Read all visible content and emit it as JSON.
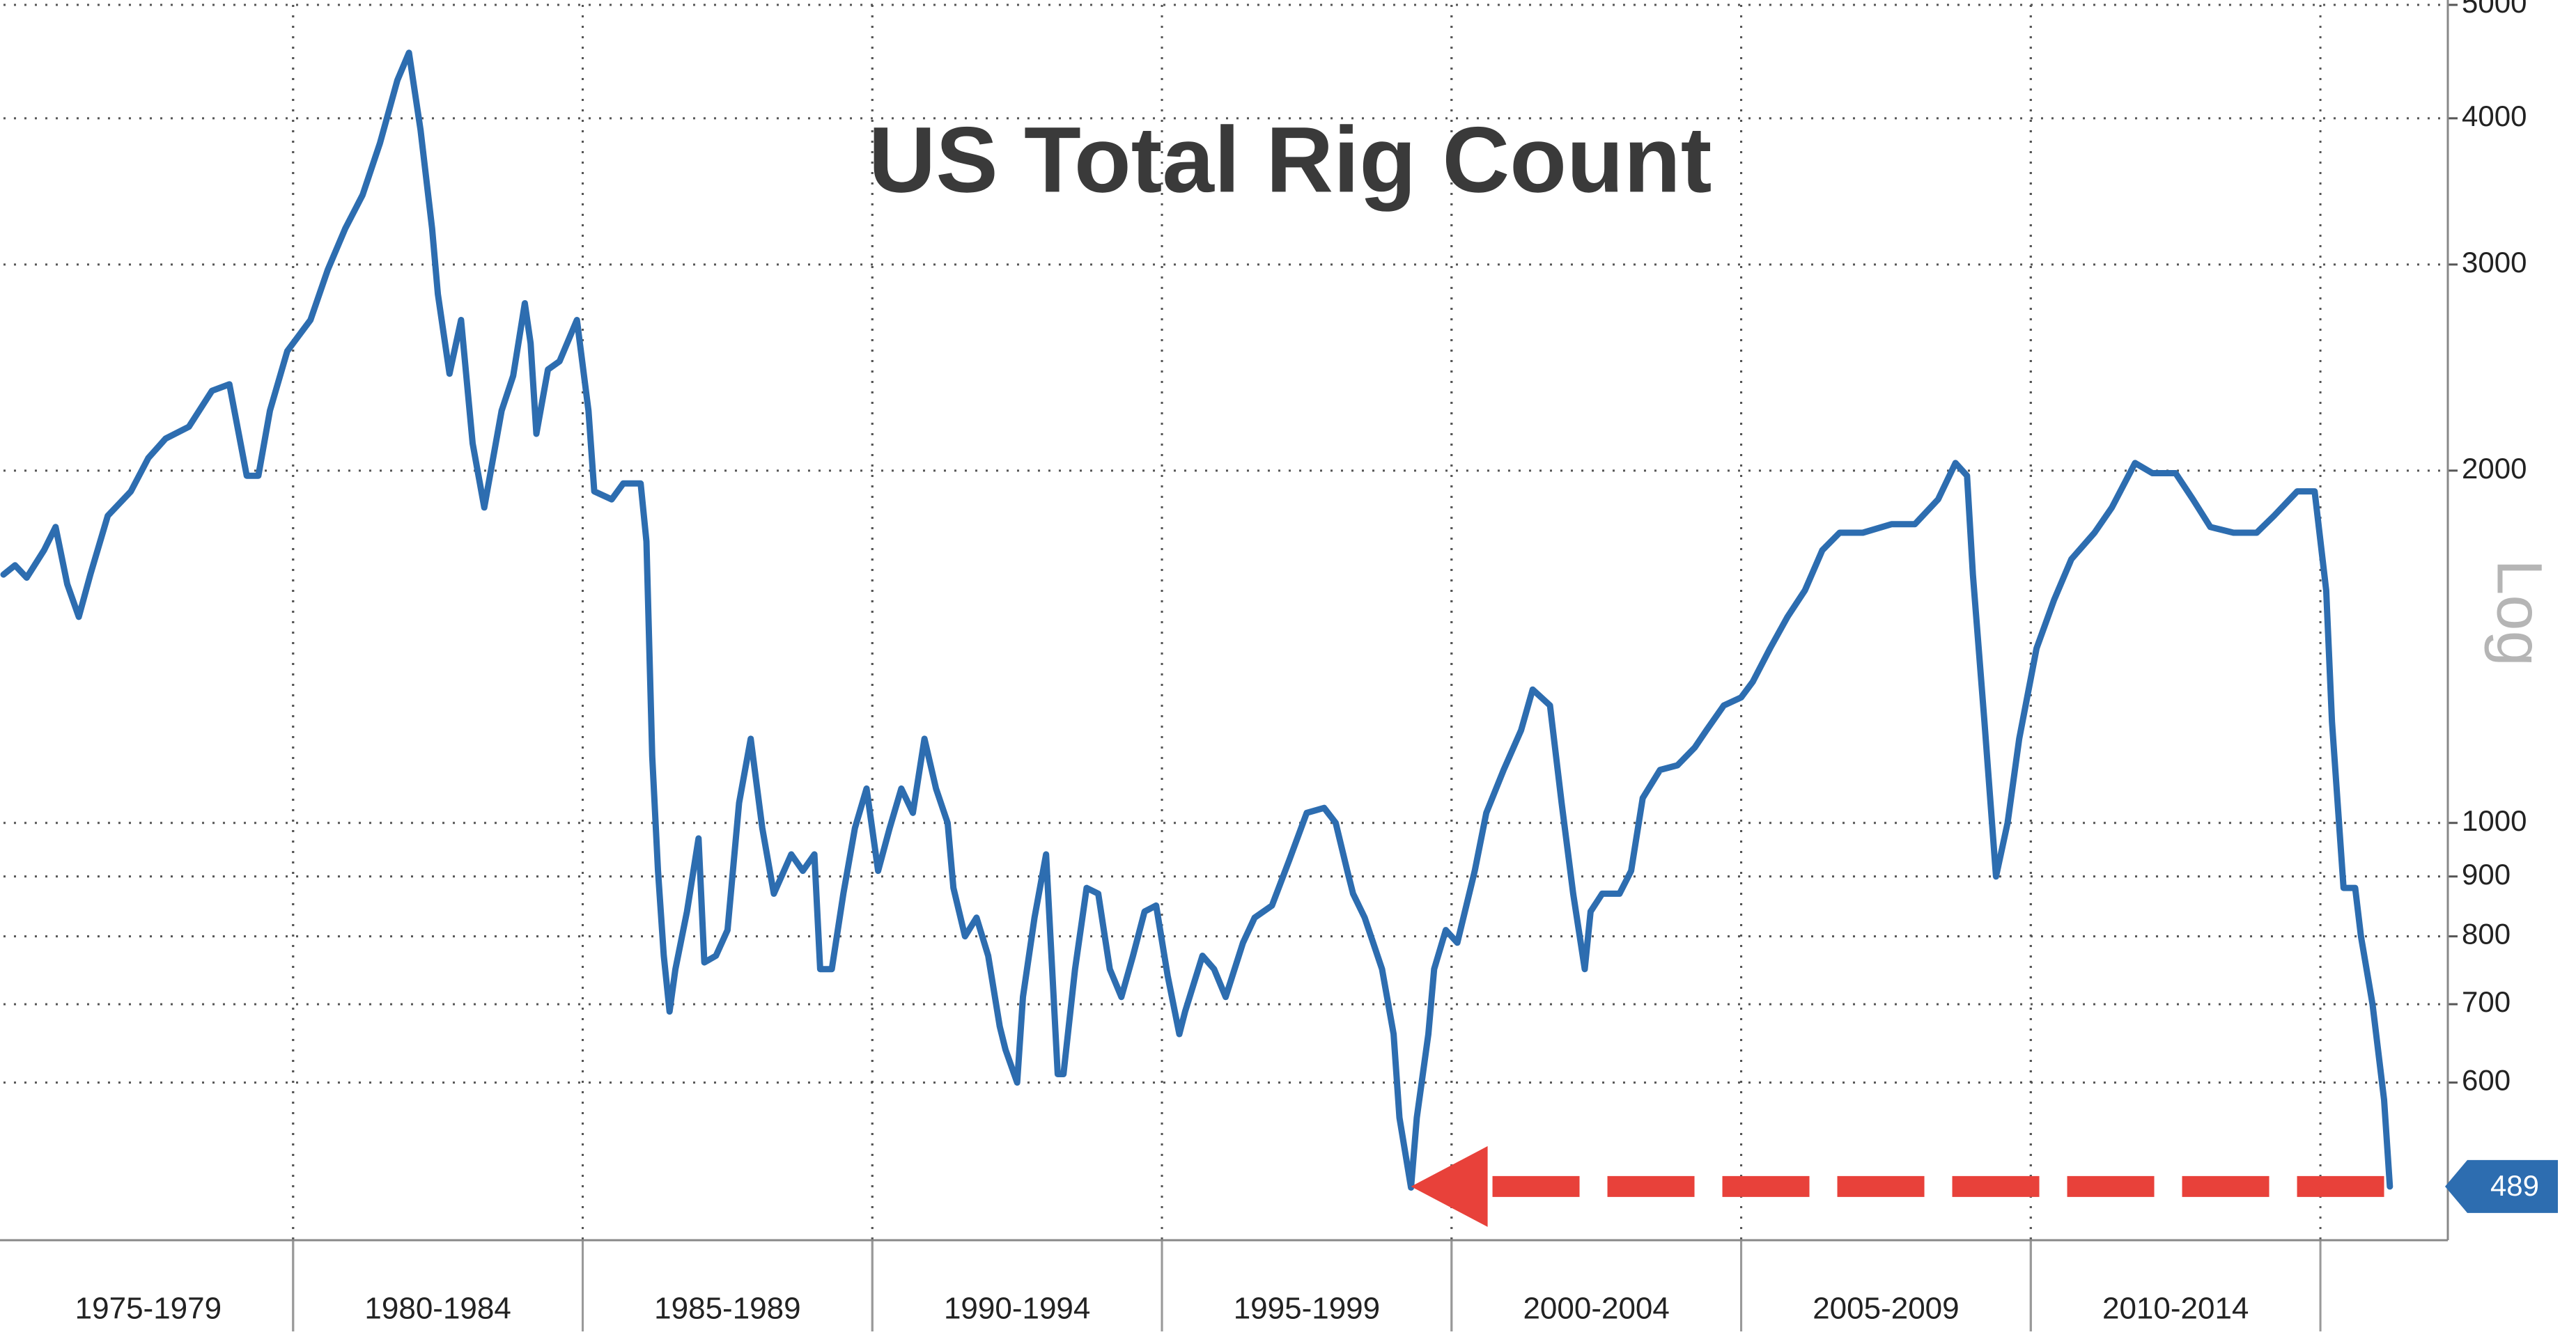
{
  "chart_data": {
    "type": "line",
    "title": "US Total Rig Count",
    "y_axis_label": "Log",
    "log_scale": true,
    "grid": true,
    "xlim": [
      1975,
      2017.2
    ],
    "ylim": [
      440,
      5000
    ],
    "yticks": [
      600,
      700,
      800,
      900,
      1000,
      2000,
      3000,
      4000,
      5000
    ],
    "periods": [
      {
        "label": "1975-1979",
        "start": 1975,
        "end": 1980
      },
      {
        "label": "1980-1984",
        "start": 1980,
        "end": 1985
      },
      {
        "label": "1985-1989",
        "start": 1985,
        "end": 1990
      },
      {
        "label": "1990-1994",
        "start": 1990,
        "end": 1995
      },
      {
        "label": "1995-1999",
        "start": 1995,
        "end": 2000
      },
      {
        "label": "2000-2004",
        "start": 2000,
        "end": 2005
      },
      {
        "label": "2005-2009",
        "start": 2005,
        "end": 2010
      },
      {
        "label": "2010-2014",
        "start": 2010,
        "end": 2015
      }
    ],
    "arrow": {
      "x": [
        1999.3,
        2016.1
      ],
      "y": 489,
      "color": "#e8413a"
    },
    "series": [
      {
        "color": "#2d6db0",
        "x": [
          1975.0,
          1975.2,
          1975.4,
          1975.7,
          1975.9,
          1976.1,
          1976.3,
          1976.5,
          1976.8,
          1977.2,
          1977.5,
          1977.8,
          1978.2,
          1978.6,
          1978.9,
          1979.2,
          1979.4,
          1979.6,
          1979.9,
          1980.3,
          1980.6,
          1980.9,
          1981.2,
          1981.5,
          1981.8,
          1982.0,
          1982.2,
          1982.4,
          1982.5,
          1982.7,
          1982.9,
          1983.1,
          1983.3,
          1983.6,
          1983.8,
          1984.0,
          1984.1,
          1984.2,
          1984.4,
          1984.6,
          1984.9,
          1985.1,
          1985.2,
          1985.5,
          1985.7,
          1986.0,
          1986.1,
          1986.2,
          1986.3,
          1986.4,
          1986.5,
          1986.6,
          1986.8,
          1987.0,
          1987.1,
          1987.3,
          1987.5,
          1987.7,
          1987.9,
          1988.1,
          1988.3,
          1988.6,
          1988.8,
          1989.0,
          1989.1,
          1989.3,
          1989.5,
          1989.7,
          1989.9,
          1990.1,
          1990.3,
          1990.5,
          1990.7,
          1990.9,
          1991.1,
          1991.3,
          1991.4,
          1991.6,
          1991.8,
          1992.0,
          1992.2,
          1992.3,
          1992.5,
          1992.6,
          1992.8,
          1993.0,
          1993.2,
          1993.3,
          1993.5,
          1993.7,
          1993.9,
          1994.1,
          1994.3,
          1994.5,
          1994.7,
          1994.9,
          1995.1,
          1995.3,
          1995.4,
          1995.7,
          1995.9,
          1996.1,
          1996.4,
          1996.6,
          1996.9,
          1997.2,
          1997.5,
          1997.8,
          1998.0,
          1998.2,
          1998.3,
          1998.5,
          1998.8,
          1999.0,
          1999.1,
          1999.3,
          1999.4,
          1999.6,
          1999.7,
          1999.9,
          2000.1,
          2000.4,
          2000.6,
          2000.9,
          2001.2,
          2001.4,
          2001.7,
          2001.9,
          2002.1,
          2002.3,
          2002.4,
          2002.6,
          2002.9,
          2003.1,
          2003.3,
          2003.6,
          2003.9,
          2004.2,
          2004.4,
          2004.7,
          2005.0,
          2005.2,
          2005.5,
          2005.8,
          2006.1,
          2006.4,
          2006.7,
          2007.1,
          2007.6,
          2008.0,
          2008.4,
          2008.7,
          2008.9,
          2009.0,
          2009.2,
          2009.4,
          2009.6,
          2009.8,
          2010.1,
          2010.4,
          2010.7,
          2011.1,
          2011.4,
          2011.8,
          2012.1,
          2012.5,
          2012.8,
          2013.1,
          2013.5,
          2013.9,
          2014.2,
          2014.6,
          2014.9,
          2015.1,
          2015.2,
          2015.4,
          2015.6,
          2015.7,
          2015.9,
          2016.1,
          2016.2
        ],
        "values": [
          1630,
          1660,
          1620,
          1710,
          1790,
          1600,
          1500,
          1630,
          1830,
          1920,
          2050,
          2130,
          2180,
          2340,
          2370,
          1980,
          1980,
          2250,
          2530,
          2690,
          2970,
          3220,
          3440,
          3810,
          4310,
          4550,
          3910,
          3220,
          2830,
          2420,
          2690,
          2110,
          1860,
          2250,
          2410,
          2780,
          2570,
          2150,
          2440,
          2480,
          2690,
          2250,
          1920,
          1890,
          1950,
          1950,
          1740,
          1140,
          910,
          770,
          690,
          750,
          840,
          970,
          760,
          770,
          810,
          1040,
          1180,
          990,
          870,
          940,
          910,
          940,
          750,
          750,
          870,
          990,
          1070,
          910,
          990,
          1070,
          1020,
          1180,
          1070,
          1000,
          880,
          800,
          830,
          770,
          670,
          640,
          600,
          710,
          830,
          940,
          610,
          610,
          750,
          880,
          870,
          750,
          710,
          770,
          840,
          850,
          740,
          660,
          690,
          770,
          750,
          710,
          790,
          830,
          850,
          930,
          1020,
          1030,
          1000,
          910,
          870,
          830,
          750,
          660,
          560,
          488,
          560,
          660,
          750,
          810,
          790,
          910,
          1020,
          1110,
          1200,
          1300,
          1260,
          1040,
          870,
          750,
          840,
          870,
          870,
          910,
          1050,
          1110,
          1120,
          1160,
          1200,
          1260,
          1280,
          1320,
          1410,
          1500,
          1580,
          1710,
          1770,
          1770,
          1800,
          1800,
          1890,
          2030,
          1980,
          1630,
          1220,
          900,
          1000,
          1180,
          1410,
          1550,
          1680,
          1770,
          1860,
          2030,
          1990,
          1990,
          1890,
          1790,
          1770,
          1770,
          1830,
          1920,
          1920,
          1580,
          1220,
          880,
          880,
          800,
          700,
          580,
          489
        ]
      }
    ]
  }
}
